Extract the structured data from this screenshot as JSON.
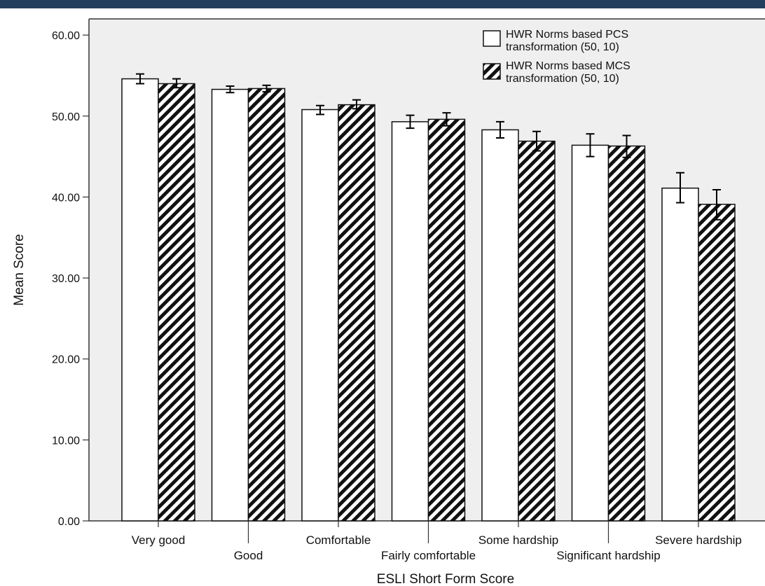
{
  "chart_data": {
    "type": "bar",
    "xlabel": "ESLI Short Form Score",
    "ylabel": "Mean Score",
    "ylim": [
      0,
      60
    ],
    "yticks": [
      "0.00",
      "10.00",
      "20.00",
      "30.00",
      "40.00",
      "50.00",
      "60.00"
    ],
    "grid": false,
    "legend_placement": "top-right",
    "categories": [
      "Very good",
      "Good",
      "Comfortable",
      "Fairly comfortable",
      "Some hardship",
      "Significant hardship",
      "Severe hardship"
    ],
    "series": [
      {
        "name": "HWR Norms based PCS transformation (50, 10)",
        "pattern": "solid-white",
        "values": [
          54.6,
          53.3,
          50.8,
          49.3,
          48.3,
          46.4,
          41.1
        ],
        "error_low": [
          54.0,
          52.9,
          50.2,
          48.5,
          47.3,
          45.0,
          39.3
        ],
        "error_high": [
          55.2,
          53.7,
          51.3,
          50.1,
          49.3,
          47.8,
          43.0
        ]
      },
      {
        "name": "HWR Norms based MCS transformation (50, 10)",
        "pattern": "diagonal-hatch",
        "values": [
          54.0,
          53.4,
          51.4,
          49.6,
          46.9,
          46.3,
          39.1
        ],
        "error_low": [
          53.5,
          53.0,
          50.9,
          48.8,
          45.7,
          44.9,
          37.2
        ],
        "error_high": [
          54.6,
          53.8,
          52.0,
          50.4,
          48.1,
          47.6,
          40.9
        ]
      }
    ],
    "colors": {
      "plot_bg": "#efefef",
      "bar_fill": "#ffffff",
      "hatch": "#111111",
      "frame": "#333333"
    }
  }
}
